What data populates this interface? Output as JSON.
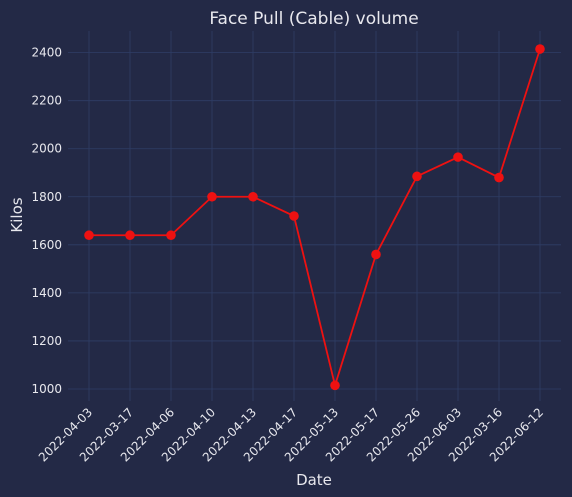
{
  "chart_data": {
    "type": "line",
    "title": "Face Pull (Cable) volume",
    "xlabel": "Date",
    "ylabel": "Kilos",
    "categories": [
      "2022-04-03",
      "2022-03-17",
      "2022-04-06",
      "2022-04-10",
      "2022-04-13",
      "2022-04-17",
      "2022-05-13",
      "2022-05-17",
      "2022-05-26",
      "2022-06-03",
      "2022-03-16",
      "2022-06-12"
    ],
    "values": [
      1640,
      1640,
      1640,
      1800,
      1800,
      1720,
      1015,
      1560,
      1885,
      1965,
      1880,
      2415
    ],
    "ylim": [
      950,
      2490
    ],
    "yticks": [
      1000,
      1200,
      1400,
      1600,
      1800,
      2000,
      2200,
      2400
    ],
    "grid": true,
    "line_color": "#ee1111",
    "background_color": "#232946",
    "grid_color": "#2f3e66",
    "text_color": "#e8e8ee"
  }
}
